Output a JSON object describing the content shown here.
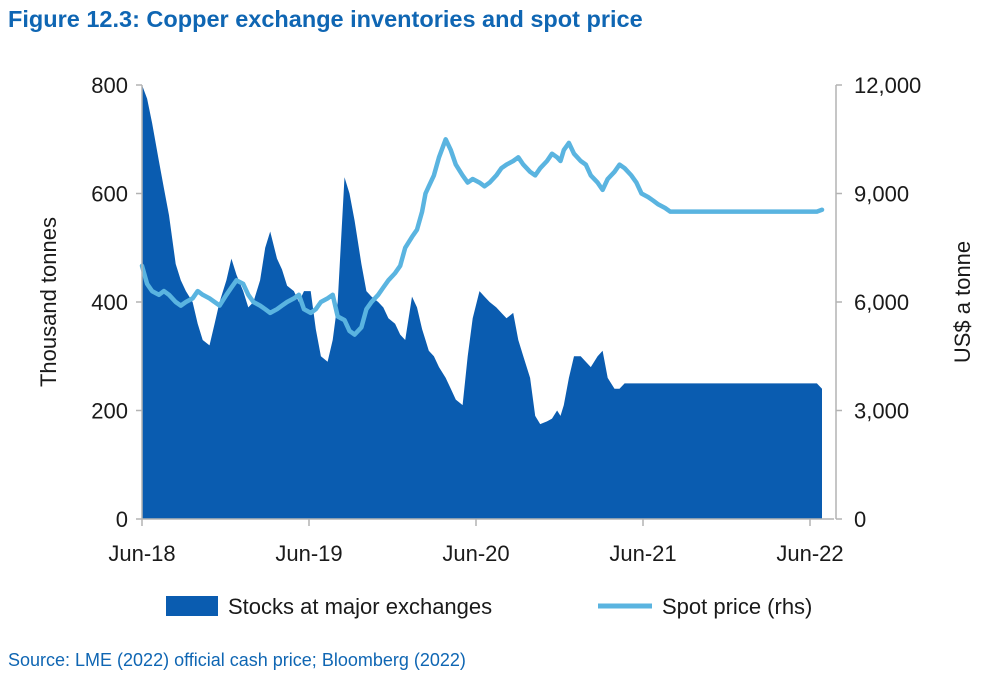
{
  "title": "Figure 12.3: Copper exchange inventories and spot price",
  "source": "Source: LME (2022) official cash price; Bloomberg (2022)",
  "colors": {
    "title": "#0f66b3",
    "area": "#0a5cb0",
    "line": "#5ab4e0",
    "axis": "#b3b3b3"
  },
  "chart_data": {
    "type": "area",
    "title": "Figure 12.3: Copper exchange inventories and spot price",
    "x_tick_labels": [
      "Jun-18",
      "Jun-19",
      "Jun-20",
      "Jun-21",
      "Jun-22"
    ],
    "x_range": [
      2018.42,
      2022.45
    ],
    "ylabel": "Thousand tonnes",
    "ylim": [
      0,
      800
    ],
    "y_ticks": [
      "0",
      "200",
      "400",
      "600",
      "800"
    ],
    "y2label": "US$ a tonne",
    "y2lim": [
      0,
      12000
    ],
    "y2_ticks": [
      "0",
      "3,000",
      "6,000",
      "9,000",
      "12,000"
    ],
    "grid": false,
    "legend_position": "bottom",
    "series": [
      {
        "name": "Stocks at major exchanges",
        "axis": "left",
        "kind": "area",
        "x": [
          2018.42,
          2018.45,
          2018.48,
          2018.52,
          2018.55,
          2018.58,
          2018.62,
          2018.65,
          2018.68,
          2018.72,
          2018.75,
          2018.78,
          2018.82,
          2018.85,
          2018.88,
          2018.92,
          2018.95,
          2018.98,
          2019.02,
          2019.05,
          2019.08,
          2019.12,
          2019.15,
          2019.18,
          2019.22,
          2019.25,
          2019.28,
          2019.32,
          2019.35,
          2019.38,
          2019.42,
          2019.45,
          2019.48,
          2019.52,
          2019.55,
          2019.58,
          2019.62,
          2019.65,
          2019.68,
          2019.72,
          2019.75,
          2019.78,
          2019.82,
          2019.85,
          2019.88,
          2019.92,
          2019.95,
          2019.98,
          2020.02,
          2020.05,
          2020.08,
          2020.1,
          2020.12,
          2020.15,
          2020.18,
          2020.22,
          2020.25,
          2020.28,
          2020.32,
          2020.35,
          2020.38,
          2020.42,
          2020.45,
          2020.48,
          2020.52,
          2020.55,
          2020.58,
          2020.62,
          2020.65,
          2020.68,
          2020.72,
          2020.75,
          2020.78,
          2020.82,
          2020.85,
          2020.88,
          2020.9,
          2020.92,
          2020.95,
          2020.98,
          2021.02,
          2021.05,
          2021.08,
          2021.12,
          2021.15,
          2021.18,
          2021.22,
          2021.25,
          2021.28,
          2021.32,
          2021.35,
          2021.38,
          2021.42,
          2021.45,
          2021.48,
          2021.52,
          2021.55,
          2021.58,
          2021.62,
          2021.65,
          2021.68,
          2021.72,
          2021.75,
          2021.78,
          2021.82,
          2021.85,
          2021.88,
          2021.92,
          2021.95,
          2021.98,
          2022.02,
          2022.05,
          2022.08,
          2022.12,
          2022.15,
          2022.18,
          2022.22,
          2022.25,
          2022.28,
          2022.32,
          2022.35,
          2022.38,
          2022.42,
          2022.45
        ],
        "values": [
          800,
          775,
          730,
          660,
          610,
          560,
          470,
          440,
          420,
          400,
          360,
          330,
          320,
          360,
          400,
          440,
          480,
          450,
          420,
          390,
          400,
          440,
          500,
          530,
          480,
          460,
          430,
          420,
          400,
          420,
          420,
          350,
          300,
          290,
          330,
          400,
          630,
          600,
          550,
          470,
          420,
          410,
          400,
          390,
          370,
          360,
          340,
          330,
          410,
          390,
          350,
          330,
          310,
          300,
          280,
          260,
          240,
          220,
          210,
          300,
          370,
          420,
          410,
          400,
          390,
          380,
          370,
          380,
          330,
          300,
          260,
          190,
          175,
          180,
          185,
          200,
          190,
          210,
          260,
          300,
          300,
          290,
          280,
          300,
          310,
          260,
          240,
          240,
          250,
          250,
          250,
          250,
          250,
          250,
          250,
          250,
          250,
          250,
          250,
          250,
          250,
          250,
          250,
          250,
          250,
          250,
          250,
          250,
          250,
          250,
          250,
          250,
          250,
          250,
          250,
          250,
          250,
          250,
          250,
          250,
          250,
          250,
          250,
          240
        ]
      },
      {
        "name": "Spot price (rhs)",
        "axis": "right",
        "kind": "line",
        "x": [
          2018.42,
          2018.45,
          2018.48,
          2018.52,
          2018.55,
          2018.58,
          2018.62,
          2018.65,
          2018.68,
          2018.72,
          2018.75,
          2018.78,
          2018.82,
          2018.85,
          2018.88,
          2018.92,
          2018.95,
          2018.98,
          2019.02,
          2019.05,
          2019.08,
          2019.12,
          2019.15,
          2019.18,
          2019.22,
          2019.25,
          2019.28,
          2019.32,
          2019.35,
          2019.38,
          2019.42,
          2019.45,
          2019.48,
          2019.52,
          2019.55,
          2019.58,
          2019.62,
          2019.65,
          2019.68,
          2019.72,
          2019.75,
          2019.78,
          2019.82,
          2019.85,
          2019.88,
          2019.92,
          2019.95,
          2019.98,
          2020.02,
          2020.05,
          2020.08,
          2020.1,
          2020.12,
          2020.15,
          2020.18,
          2020.22,
          2020.25,
          2020.28,
          2020.32,
          2020.35,
          2020.38,
          2020.42,
          2020.45,
          2020.48,
          2020.52,
          2020.55,
          2020.58,
          2020.62,
          2020.65,
          2020.68,
          2020.72,
          2020.75,
          2020.78,
          2020.82,
          2020.85,
          2020.88,
          2020.9,
          2020.92,
          2020.95,
          2020.98,
          2021.02,
          2021.05,
          2021.08,
          2021.12,
          2021.15,
          2021.18,
          2021.22,
          2021.25,
          2021.28,
          2021.32,
          2021.35,
          2021.38,
          2021.42,
          2021.45,
          2021.48,
          2021.52,
          2021.55,
          2021.58,
          2021.62,
          2021.65,
          2021.68,
          2021.72,
          2021.75,
          2021.78,
          2021.82,
          2021.85,
          2021.88,
          2021.92,
          2021.95,
          2021.98,
          2022.02,
          2022.05,
          2022.08,
          2022.12,
          2022.15,
          2022.18,
          2022.22,
          2022.25,
          2022.28,
          2022.32,
          2022.35,
          2022.38,
          2022.42,
          2022.45
        ],
        "values": [
          7000,
          6500,
          6300,
          6200,
          6300,
          6200,
          6000,
          5900,
          6000,
          6100,
          6300,
          6200,
          6100,
          6000,
          5900,
          6200,
          6400,
          6600,
          6500,
          6200,
          6000,
          5900,
          5800,
          5700,
          5800,
          5900,
          6000,
          6100,
          6200,
          5800,
          5700,
          5800,
          6000,
          6100,
          6200,
          5600,
          5500,
          5200,
          5100,
          5300,
          5800,
          6000,
          6200,
          6400,
          6600,
          6800,
          7000,
          7500,
          7800,
          8000,
          8500,
          9000,
          9200,
          9500,
          10000,
          10500,
          10200,
          9800,
          9500,
          9300,
          9400,
          9300,
          9200,
          9300,
          9500,
          9700,
          9800,
          9900,
          10000,
          9800,
          9600,
          9500,
          9700,
          9900,
          10100,
          10000,
          9900,
          10200,
          10400,
          10100,
          9900,
          9800,
          9500,
          9300,
          9100,
          9400,
          9600,
          9800,
          9700,
          9500,
          9300,
          9000,
          8900,
          8800,
          8700,
          8600,
          8500,
          8500,
          8500,
          8500,
          8500,
          8500,
          8500,
          8500,
          8500,
          8500,
          8500,
          8500,
          8500,
          8500,
          8500,
          8500,
          8500,
          8500,
          8500,
          8500,
          8500,
          8500,
          8500,
          8500,
          8500,
          8500,
          8500,
          8550
        ]
      }
    ]
  }
}
